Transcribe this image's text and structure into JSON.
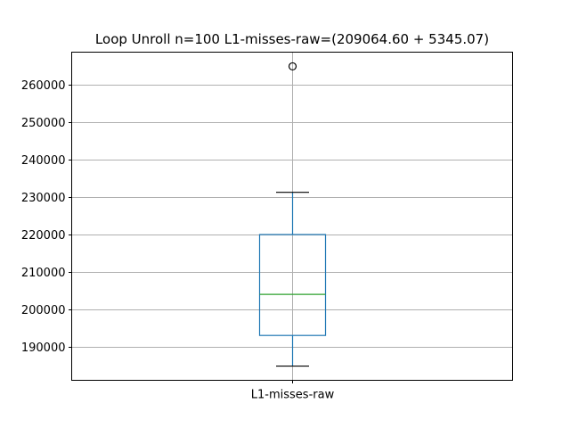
{
  "chart_data": {
    "type": "box",
    "title": "Loop Unroll n=100  L1-misses-raw=(209064.60 + 5345.07)",
    "categories": [
      "L1-misses-raw"
    ],
    "series": [
      {
        "whisker_low": 184800,
        "q1": 193000,
        "median": 204000,
        "q3": 220000,
        "whisker_high": 231300,
        "outliers": [
          265000
        ]
      }
    ],
    "ylim": [
      181000,
      268800
    ],
    "yticks": [
      190000,
      200000,
      210000,
      220000,
      230000,
      240000,
      250000,
      260000
    ],
    "ytick_labels": [
      "190000",
      "200000",
      "210000",
      "220000",
      "230000",
      "240000",
      "250000",
      "260000"
    ],
    "grid": true,
    "colors": {
      "box": "#1f77b4",
      "median": "#2ca02c",
      "whisker_cap": "#000000",
      "grid": "#b0b0b0",
      "outlier": "#000000"
    }
  }
}
